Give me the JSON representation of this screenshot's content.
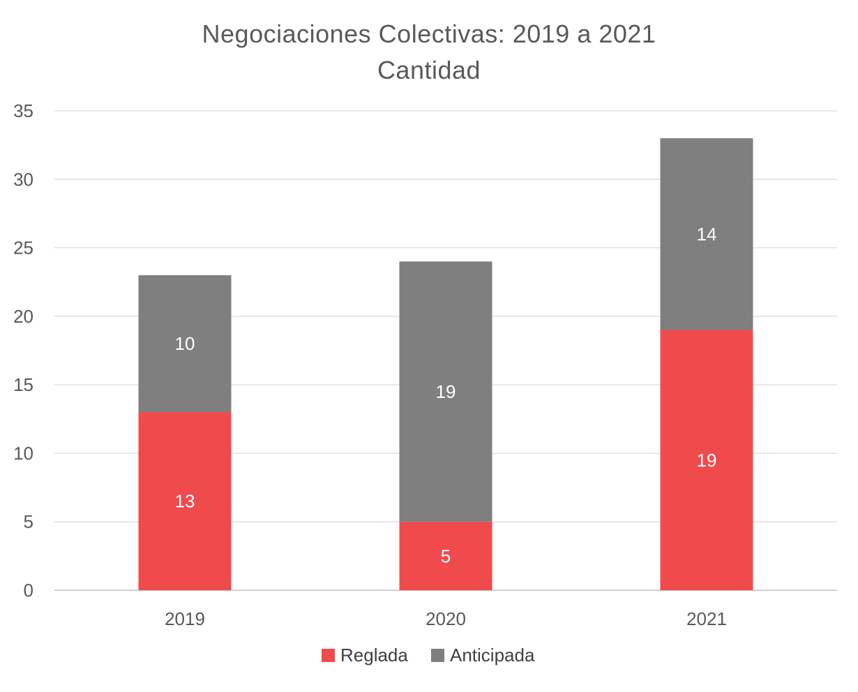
{
  "chart_data": {
    "type": "bar",
    "stacked": true,
    "title": "Negociaciones Colectivas: 2019 a 2021",
    "subtitle": "Cantidad",
    "categories": [
      "2019",
      "2020",
      "2021"
    ],
    "series": [
      {
        "name": "Reglada",
        "values": [
          13,
          5,
          19
        ],
        "color": "#f04b4c"
      },
      {
        "name": "Anticipada",
        "values": [
          10,
          19,
          14
        ],
        "color": "#7f7f7f"
      }
    ],
    "ylim": [
      0,
      35
    ],
    "yticks": [
      0,
      5,
      10,
      15,
      20,
      25,
      30,
      35
    ],
    "grid": true,
    "legend_position": "bottom",
    "xlabel": "",
    "ylabel": ""
  }
}
